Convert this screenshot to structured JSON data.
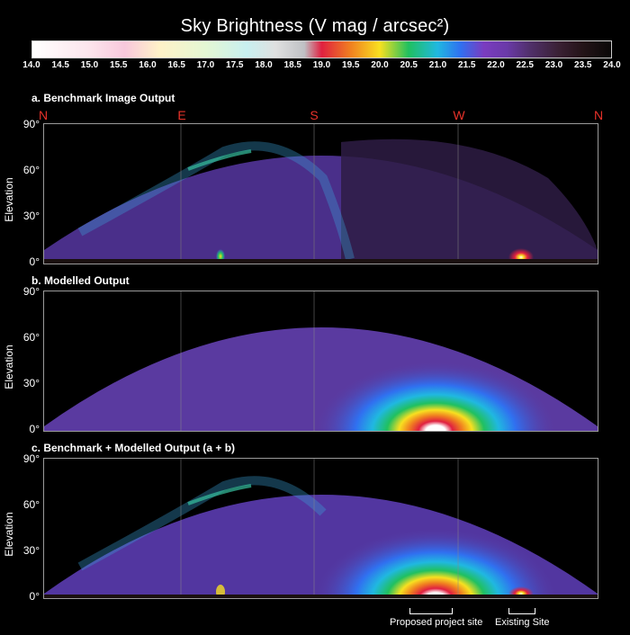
{
  "colorbar": {
    "title": "Sky Brightness (V mag / arcsec²)",
    "ticks": [
      "14.0",
      "14.5",
      "15.0",
      "15.5",
      "16.0",
      "16.5",
      "17.0",
      "17.5",
      "18.0",
      "18.5",
      "19.0",
      "19.5",
      "20.0",
      "20.5",
      "21.0",
      "21.5",
      "22.0",
      "22.5",
      "23.0",
      "23.5",
      "24.0"
    ]
  },
  "directions": [
    "N",
    "E",
    "S",
    "W",
    "N"
  ],
  "axis": {
    "ylabel": "Elevation",
    "yticks": [
      "90°",
      "60°",
      "30°",
      "0°"
    ]
  },
  "panels": [
    {
      "title": "a. Benchmark Image Output"
    },
    {
      "title": "b. Modelled Output"
    },
    {
      "title": "c. Benchmark + Modelled Output (a + b)"
    }
  ],
  "sites": {
    "proposed": "Proposed project site",
    "existing": "Existing Site"
  },
  "colors": {
    "background": "#000000",
    "direction_label": "#e8322a",
    "sky_base": "#5a3aa0"
  }
}
